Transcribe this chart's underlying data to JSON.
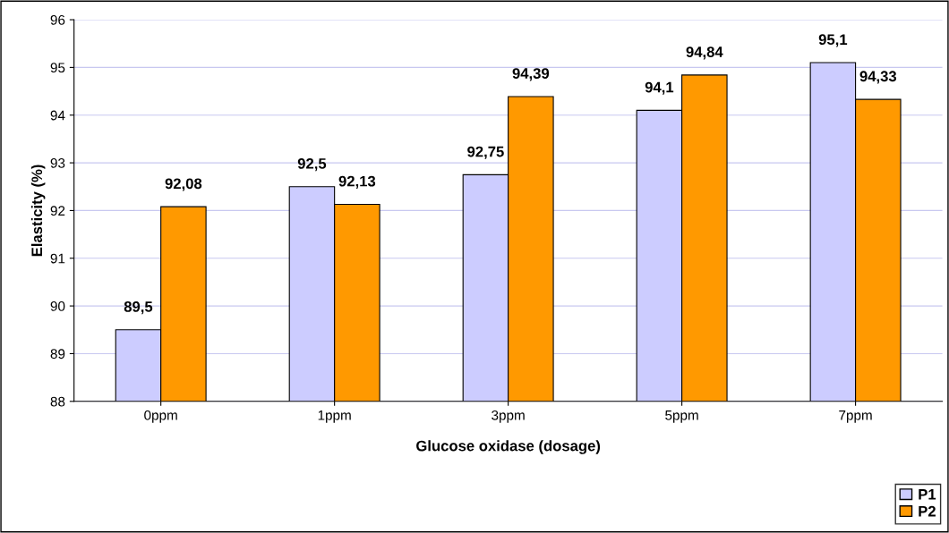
{
  "chart_data": {
    "type": "bar",
    "xlabel": "Glucose oxidase (dosage)",
    "ylabel": "Elasticity (%)",
    "categories": [
      "0ppm",
      "1ppm",
      "3ppm",
      "5ppm",
      "7ppm"
    ],
    "series": [
      {
        "name": "P1",
        "color": "#ccccff",
        "values": [
          89.5,
          92.5,
          92.75,
          94.1,
          95.1
        ],
        "value_labels": [
          "89,5",
          "92,5",
          "92,75",
          "94,1",
          "95,1"
        ]
      },
      {
        "name": "P2",
        "color": "#ff9900",
        "values": [
          92.08,
          92.13,
          94.39,
          94.84,
          94.33
        ],
        "value_labels": [
          "92,08",
          "92,13",
          "94,39",
          "94,84",
          "94,33"
        ]
      }
    ],
    "ylim": [
      88,
      96
    ],
    "yticks": [
      88,
      89,
      90,
      91,
      92,
      93,
      94,
      95,
      96
    ],
    "grid": "y",
    "legend": "bottom right"
  }
}
